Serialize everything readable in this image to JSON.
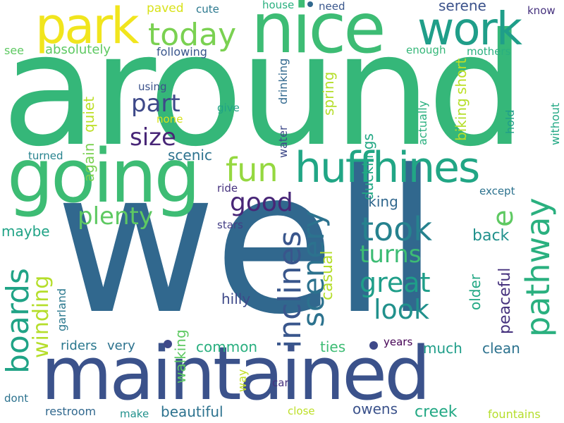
{
  "words": {
    "well": {
      "text": "well",
      "color": "#31688e"
    },
    "around": {
      "text": "around",
      "color": "#35b779"
    },
    "maintained": {
      "text": "maintained",
      "color": "#3b528b"
    },
    "going": {
      "text": "going",
      "color": "#3dbc74"
    },
    "nice": {
      "text": "nice",
      "color": "#3dbc74"
    },
    "huffhines": {
      "text": "huffhines",
      "color": "#21a685"
    },
    "park": {
      "text": "park",
      "color": "#f1e51d"
    },
    "work": {
      "text": "work",
      "color": "#1f9e89"
    },
    "today": {
      "text": "today",
      "color": "#7ad151"
    },
    "fun": {
      "text": "fun",
      "color": "#95d840"
    },
    "took": {
      "text": "took",
      "color": "#26828e"
    },
    "pathway": {
      "text": "pathway",
      "color": "#2ab07f"
    },
    "boards": {
      "text": "boards",
      "color": "#20a386"
    },
    "inclines": {
      "text": "inclines",
      "color": "#39568c"
    },
    "scenery": {
      "text": "scenery",
      "color": "#2c728e"
    },
    "great": {
      "text": "great",
      "color": "#1f9e89"
    },
    "look": {
      "text": "look",
      "color": "#21918c"
    },
    "turns": {
      "text": "turns",
      "color": "#3dbc74"
    },
    "part": {
      "text": "part",
      "color": "#3e4989"
    },
    "size": {
      "text": "size",
      "color": "#482677"
    },
    "good": {
      "text": "good",
      "color": "#482677"
    },
    "plenty": {
      "text": "plenty",
      "color": "#5ec962"
    },
    "winding": {
      "text": "winding",
      "color": "#b5de2b"
    },
    "e": {
      "text": "e",
      "color": "#5ec962"
    },
    "absolutely": {
      "text": "absolutely",
      "color": "#5ec962"
    },
    "see": {
      "text": "see",
      "color": "#5ec962"
    },
    "paved": {
      "text": "paved",
      "color": "#d8e219"
    },
    "cute": {
      "text": "cute",
      "color": "#2a788e"
    },
    "house": {
      "text": "house",
      "color": "#2ab07f"
    },
    "need": {
      "text": "need",
      "color": "#39568c"
    },
    "serene": {
      "text": "serene",
      "color": "#3b528b"
    },
    "know": {
      "text": "know",
      "color": "#46327e"
    },
    "following": {
      "text": "following",
      "color": "#39568c"
    },
    "enough": {
      "text": "enough",
      "color": "#35b779"
    },
    "mothers": {
      "text": "mothers",
      "color": "#2ab07f"
    },
    "quiet": {
      "text": "quiet",
      "color": "#bddf26"
    },
    "spring": {
      "text": "spring",
      "color": "#b5de2b"
    },
    "drinking": {
      "text": "drinking",
      "color": "#31688e"
    },
    "water": {
      "text": "water",
      "color": "#3e4989"
    },
    "short": {
      "text": "short",
      "color": "#bddf26"
    },
    "biking_v": {
      "text": "biking",
      "color": "#b5de2b"
    },
    "actually": {
      "text": "actually",
      "color": "#2ab07f"
    },
    "hold": {
      "text": "hold",
      "color": "#1f9e89"
    },
    "without": {
      "text": "without",
      "color": "#22a884"
    },
    "using": {
      "text": "using",
      "color": "#3b528b"
    },
    "give": {
      "text": "give",
      "color": "#20a386"
    },
    "none": {
      "text": "none",
      "color": "#d8e219"
    },
    "again": {
      "text": "again",
      "color": "#7ad151"
    },
    "ducklings": {
      "text": "ducklings",
      "color": "#22a884"
    },
    "scenic": {
      "text": "scenic",
      "color": "#2c728e"
    },
    "turned": {
      "text": "turned",
      "color": "#26828e"
    },
    "ride": {
      "text": "ride",
      "color": "#46327e"
    },
    "except": {
      "text": "except",
      "color": "#2c728e"
    },
    "biking": {
      "text": "biking",
      "color": "#31688e"
    },
    "back": {
      "text": "back",
      "color": "#21918c"
    },
    "stars": {
      "text": "stars",
      "color": "#433e85"
    },
    "maybe": {
      "text": "maybe",
      "color": "#20a386"
    },
    "hilly": {
      "text": "hilly",
      "color": "#3e4989"
    },
    "casual": {
      "text": "casual",
      "color": "#b5de2b"
    },
    "older": {
      "text": "older",
      "color": "#22a884"
    },
    "peaceful": {
      "text": "peaceful",
      "color": "#46327e"
    },
    "riders": {
      "text": "riders",
      "color": "#2a788e"
    },
    "very": {
      "text": "very",
      "color": "#2c728e"
    },
    "common": {
      "text": "common",
      "color": "#29af7f"
    },
    "ties": {
      "text": "ties",
      "color": "#3dbc74"
    },
    "much": {
      "text": "much",
      "color": "#1f9e89"
    },
    "clean": {
      "text": "clean",
      "color": "#2c728e"
    },
    "years": {
      "text": "years",
      "color": "#440154"
    },
    "garland": {
      "text": "garland",
      "color": "#2a788e"
    },
    "walking": {
      "text": "walking",
      "color": "#5ec962"
    },
    "way": {
      "text": "way",
      "color": "#c2df23"
    },
    "car": {
      "text": "car",
      "color": "#46327e"
    },
    "dont": {
      "text": "dont",
      "color": "#2c728e"
    },
    "restroom": {
      "text": "restroom",
      "color": "#31688e"
    },
    "make": {
      "text": "make",
      "color": "#21918c"
    },
    "beautiful": {
      "text": "beautiful",
      "color": "#2c728e"
    },
    "close": {
      "text": "close",
      "color": "#bddf26"
    },
    "owens": {
      "text": "owens",
      "color": "#3b528b"
    },
    "creek": {
      "text": "creek",
      "color": "#22a884"
    },
    "fountains": {
      "text": "fountains",
      "color": "#b5de2b"
    }
  },
  "dots": {
    "color_a": "#3e4989",
    "color_b": "#31688e"
  }
}
